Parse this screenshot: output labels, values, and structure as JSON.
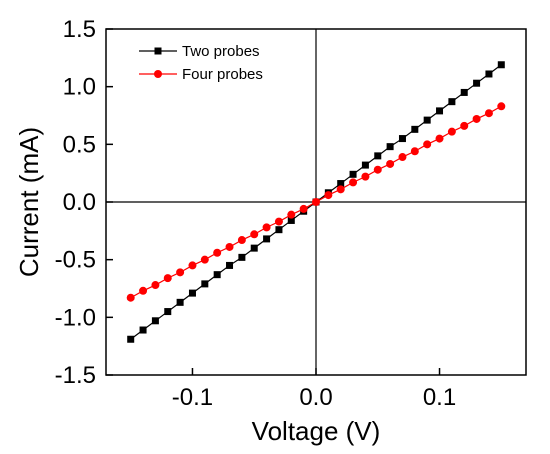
{
  "chart_data": {
    "type": "scatter",
    "xlabel": "Voltage (V)",
    "ylabel": "Current (mA)",
    "xlim": [
      -0.17,
      0.17
    ],
    "ylim": [
      -1.5,
      1.5
    ],
    "x_ticks": [
      -0.1,
      0.0,
      0.1
    ],
    "x_tick_labels": [
      "-0.1",
      "0.0",
      "0.1"
    ],
    "y_ticks": [
      -1.5,
      -1.0,
      -0.5,
      0.0,
      0.5,
      1.0,
      1.5
    ],
    "y_tick_labels": [
      "-1.5",
      "-1.0",
      "-0.5",
      "0.0",
      "0.5",
      "1.0",
      "1.5"
    ],
    "grid": false,
    "zero_lines": true,
    "legend_position": "top-left",
    "series": [
      {
        "name": "Two probes",
        "color": "#000000",
        "marker": "square",
        "x": [
          -0.15,
          -0.14,
          -0.13,
          -0.12,
          -0.11,
          -0.1,
          -0.09,
          -0.08,
          -0.07,
          -0.06,
          -0.05,
          -0.04,
          -0.03,
          -0.02,
          -0.01,
          0.0,
          0.01,
          0.02,
          0.03,
          0.04,
          0.05,
          0.06,
          0.07,
          0.08,
          0.09,
          0.1,
          0.11,
          0.12,
          0.13,
          0.14,
          0.15
        ],
        "y": [
          -1.19,
          -1.11,
          -1.03,
          -0.95,
          -0.87,
          -0.79,
          -0.71,
          -0.63,
          -0.55,
          -0.48,
          -0.4,
          -0.32,
          -0.24,
          -0.16,
          -0.08,
          0.0,
          0.08,
          0.16,
          0.24,
          0.32,
          0.4,
          0.48,
          0.55,
          0.63,
          0.71,
          0.79,
          0.87,
          0.95,
          1.03,
          1.11,
          1.19
        ]
      },
      {
        "name": "Four probes",
        "color": "#ff0000",
        "marker": "circle",
        "x": [
          -0.15,
          -0.14,
          -0.13,
          -0.12,
          -0.11,
          -0.1,
          -0.09,
          -0.08,
          -0.07,
          -0.06,
          -0.05,
          -0.04,
          -0.03,
          -0.02,
          -0.01,
          0.0,
          0.01,
          0.02,
          0.03,
          0.04,
          0.05,
          0.06,
          0.07,
          0.08,
          0.09,
          0.1,
          0.11,
          0.12,
          0.13,
          0.14,
          0.15
        ],
        "y": [
          -0.83,
          -0.77,
          -0.72,
          -0.66,
          -0.61,
          -0.55,
          -0.5,
          -0.44,
          -0.39,
          -0.33,
          -0.28,
          -0.22,
          -0.17,
          -0.11,
          -0.06,
          0.0,
          0.06,
          0.11,
          0.17,
          0.22,
          0.28,
          0.33,
          0.39,
          0.44,
          0.5,
          0.55,
          0.61,
          0.66,
          0.72,
          0.77,
          0.83
        ]
      }
    ]
  }
}
